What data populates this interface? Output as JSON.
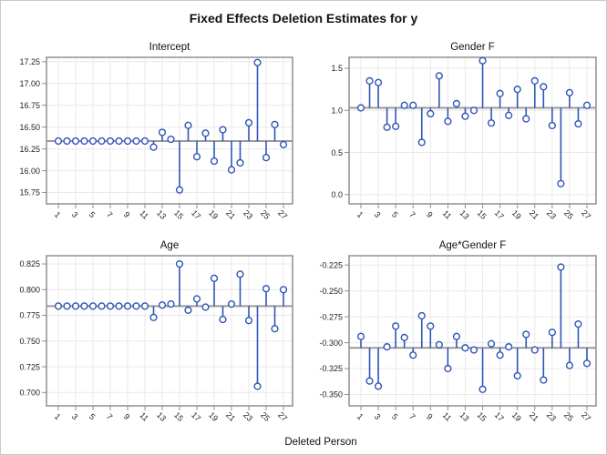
{
  "figure": {
    "title": "Fixed Effects Deletion Estimates for y",
    "xlabel": "Deleted Person"
  },
  "style": {
    "needle_color": "#2E55B8",
    "marker_fill": "#ffffff",
    "baseline_color": "#999999",
    "frame_color": "#8f8f8f",
    "grid_color": "#e9e9e9",
    "tick_color": "#8f8f8f",
    "border_color": "#c9c9c9",
    "background": "#ffffff"
  },
  "x_axis": {
    "label": "Deleted Person",
    "x_values": [
      1,
      2,
      3,
      4,
      5,
      6,
      7,
      8,
      9,
      10,
      11,
      12,
      13,
      14,
      15,
      16,
      17,
      18,
      19,
      20,
      21,
      22,
      23,
      24,
      25,
      26,
      27
    ],
    "tick_values": [
      1,
      3,
      5,
      7,
      9,
      11,
      13,
      15,
      17,
      19,
      21,
      23,
      25,
      27
    ],
    "n_points": 27
  },
  "chart_data": [
    {
      "type": "needle",
      "title": "Intercept",
      "baseline": 16.34,
      "values": [
        16.34,
        16.34,
        16.34,
        16.34,
        16.34,
        16.34,
        16.34,
        16.34,
        16.34,
        16.34,
        16.34,
        16.27,
        16.44,
        16.36,
        15.78,
        16.52,
        16.16,
        16.43,
        16.11,
        16.47,
        16.01,
        16.09,
        16.55,
        17.24,
        16.15,
        16.53,
        16.3
      ],
      "yticks": [
        15.75,
        16.0,
        16.25,
        16.5,
        16.75,
        17.0,
        17.25
      ],
      "ytick_labels": [
        "15.75",
        "16.00",
        "16.25",
        "16.50",
        "16.75",
        "17.00",
        "17.25"
      ],
      "ylim": [
        15.62,
        17.3
      ]
    },
    {
      "type": "needle",
      "title": "Gender F",
      "baseline": 1.03,
      "values": [
        1.03,
        1.35,
        1.33,
        0.8,
        0.81,
        1.06,
        1.06,
        0.62,
        0.96,
        1.41,
        0.87,
        1.08,
        0.93,
        1.0,
        1.59,
        0.85,
        1.2,
        0.94,
        1.25,
        0.9,
        1.35,
        1.28,
        0.82,
        0.13,
        1.21,
        0.84,
        1.06
      ],
      "yticks": [
        0.0,
        0.5,
        1.0,
        1.5
      ],
      "ytick_labels": [
        "0.0",
        "0.5",
        "1.0",
        "1.5"
      ],
      "ylim": [
        -0.11,
        1.63
      ]
    },
    {
      "type": "needle",
      "title": "Age",
      "baseline": 0.784,
      "values": [
        0.784,
        0.784,
        0.784,
        0.784,
        0.784,
        0.784,
        0.784,
        0.784,
        0.784,
        0.784,
        0.784,
        0.773,
        0.785,
        0.786,
        0.825,
        0.78,
        0.791,
        0.783,
        0.811,
        0.771,
        0.786,
        0.815,
        0.77,
        0.706,
        0.801,
        0.762,
        0.8
      ],
      "yticks": [
        0.7,
        0.725,
        0.75,
        0.775,
        0.8,
        0.825
      ],
      "ytick_labels": [
        "0.700",
        "0.725",
        "0.750",
        "0.775",
        "0.800",
        "0.825"
      ],
      "ylim": [
        0.687,
        0.833
      ]
    },
    {
      "type": "needle",
      "title": "Age*Gender F",
      "baseline": -0.305,
      "values": [
        -0.294,
        -0.337,
        -0.342,
        -0.304,
        -0.284,
        -0.295,
        -0.312,
        -0.274,
        -0.284,
        -0.302,
        -0.325,
        -0.294,
        -0.305,
        -0.307,
        -0.345,
        -0.301,
        -0.312,
        -0.304,
        -0.332,
        -0.292,
        -0.307,
        -0.336,
        -0.29,
        -0.227,
        -0.322,
        -0.282,
        -0.32
      ],
      "yticks": [
        -0.35,
        -0.325,
        -0.3,
        -0.275,
        -0.25,
        -0.225
      ],
      "ytick_labels": [
        "-0.350",
        "-0.325",
        "-0.300",
        "-0.275",
        "-0.250",
        "-0.225"
      ],
      "ylim": [
        -0.361,
        -0.216
      ]
    }
  ]
}
